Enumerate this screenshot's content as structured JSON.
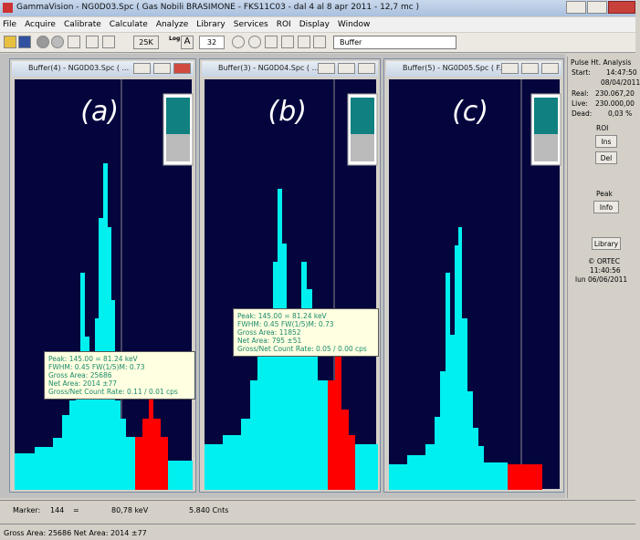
{
  "title_bar": {
    "title": "GammaVision - NG0D03.Spc ( Gas Nobili BRASIMONE - FKS11C03 - dal 4 al 8 apr 2011 - 12,7 mc )"
  },
  "menu": [
    "File",
    "Acquire",
    "Calibrate",
    "Calculate",
    "Analyze",
    "Library",
    "Services",
    "ROI",
    "Display",
    "Window"
  ],
  "toolbar": {
    "zoom": "25K",
    "log": "Log",
    "log_mode": "A",
    "channels": "32",
    "buffer": "Buffer"
  },
  "windows": [
    {
      "title": "Buffer(4) - NG0D03.Spc ( ...",
      "label": "(a)"
    },
    {
      "title": "Buffer(3) - NG0D04.Spc ( ...",
      "label": "(b)"
    },
    {
      "title": "Buffer(5) - NG0D05.Spc ( F...",
      "label": "(c)"
    }
  ],
  "tooltips": [
    {
      "lines": [
        "Peak: 145.00 = 81.24 keV",
        "FWHM: 0.45  FW(1/5)M: 0.73",
        "Gross Area: 25686",
        "Net Area: 2014 ±77",
        "Gross/Net Count Rate: 0.11 / 0.01 cps"
      ]
    },
    {
      "lines": [
        "Peak: 145.00 = 81.24 keV",
        "FWHM: 0.45  FW(1/5)M: 0.73",
        "Gross Area: 11852",
        "Net Area: 795 ±51",
        "Gross/Net Count Rate: 0.05 / 0.00 cps"
      ]
    }
  ],
  "side_panel": {
    "heading": "Pulse Ht. Analysis",
    "start_label": "Start:",
    "start_time": "14:47:50",
    "start_date": "08/04/2011",
    "real_label": "Real:",
    "real": "230.067,20",
    "live_label": "Live:",
    "live": "230.000,00",
    "dead_label": "Dead:",
    "dead": "0,03 %",
    "roi_heading": "ROI",
    "ins": "Ins",
    "del": "Del",
    "peak_heading": "Peak",
    "info": "Info",
    "library": "Library",
    "copyright": "© ORTEC",
    "clock": "11:40:56",
    "date": "lun  06/06/2011"
  },
  "marker_bar": {
    "label": "Marker:",
    "channel": "144",
    "equals": "=",
    "energy": "80,78 keV",
    "counts": "5.840  Cnts"
  },
  "status": "Gross Area: 25686  Net Area: 2014 ±77"
}
